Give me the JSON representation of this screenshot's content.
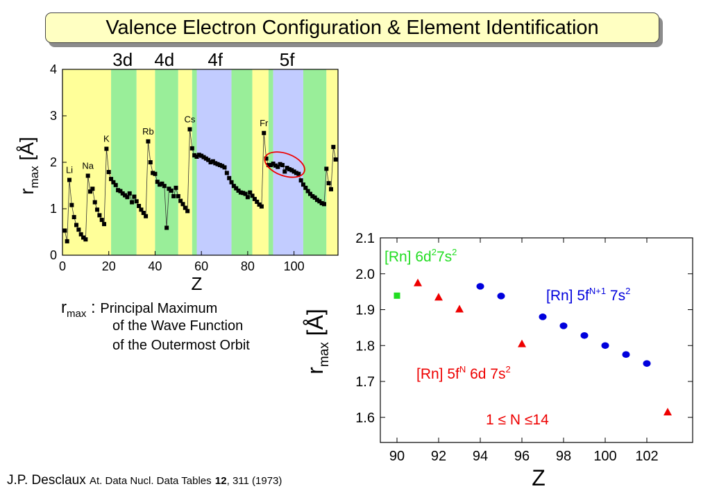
{
  "title": "Valence Electron Configuration & Element Identification",
  "left_plot": {
    "band_labels": [
      "3d",
      "4d",
      "4f",
      "5f"
    ],
    "element_labels": [
      "Li",
      "Na",
      "K",
      "Rb",
      "Cs",
      "Fr"
    ],
    "ylabel_main": "r",
    "ylabel_sub": "max",
    "ylabel_unit": "[Å]",
    "xlabel": "Z",
    "xticks": [
      "0",
      "20",
      "40",
      "60",
      "80",
      "100"
    ],
    "yticks": [
      "0",
      "1",
      "2",
      "3",
      "4"
    ]
  },
  "right_plot": {
    "xlabel": "Z",
    "ylabel_main": "r",
    "ylabel_sub": "max",
    "ylabel_unit": "[Å]",
    "xticks": [
      "90",
      "92",
      "94",
      "96",
      "98",
      "100",
      "102"
    ],
    "yticks": [
      "1.6",
      "1.7",
      "1.8",
      "1.9",
      "2.0",
      "2.1"
    ],
    "label_green": {
      "base": "[Rn] 6d",
      "sup1": "2",
      "mid": "7s",
      "sup2": "2"
    },
    "label_blue": {
      "base": "[Rn] 5f",
      "sup1": "N+1",
      "mid": " 7s",
      "sup2": "2"
    },
    "label_red": {
      "base": "[Rn] 5f",
      "sup1": "N",
      "mid": " 6d 7s",
      "sup2": "2"
    },
    "label_range": "1 ≤ N ≤14"
  },
  "rmax_note": {
    "symbol": "r",
    "sub": "max",
    "colon": " : ",
    "lines": [
      "Principal Maximum",
      "of the Wave Function",
      "of the Outermost Orbit"
    ]
  },
  "citation": {
    "author": "J.P. Desclaux",
    "journal": "At. Data Nucl. Data Tables",
    "volume": "12",
    "pages": ", 311 (1973)"
  },
  "colors": {
    "yellow_band": "#ffff99",
    "green_band": "#99ee99",
    "blue_band": "#c2ccff",
    "title_bg": "#ffffc2",
    "green_marker": "#22dd22",
    "red_marker": "#ee0000",
    "blue_marker": "#0000dd"
  },
  "chart_data": [
    {
      "type": "line",
      "xlabel": "Z",
      "ylabel": "r_max [Å]",
      "xlim": [
        0,
        119
      ],
      "ylim": [
        0,
        4
      ],
      "bands": [
        {
          "from": 0,
          "to": 21,
          "color": "yellow"
        },
        {
          "from": 21,
          "to": 32,
          "color": "green"
        },
        {
          "from": 32,
          "to": 40,
          "color": "yellow"
        },
        {
          "from": 40,
          "to": 50,
          "color": "green"
        },
        {
          "from": 50,
          "to": 56,
          "color": "yellow"
        },
        {
          "from": 56,
          "to": 58,
          "color": "green"
        },
        {
          "from": 58,
          "to": 73,
          "color": "blue"
        },
        {
          "from": 73,
          "to": 82,
          "color": "green"
        },
        {
          "from": 82,
          "to": 89,
          "color": "yellow"
        },
        {
          "from": 89,
          "to": 91,
          "color": "green"
        },
        {
          "from": 91,
          "to": 104,
          "color": "blue"
        },
        {
          "from": 104,
          "to": 114,
          "color": "green"
        },
        {
          "from": 114,
          "to": 119,
          "color": "yellow"
        }
      ],
      "band_label_z": [
        {
          "text": "3d",
          "z": 26
        },
        {
          "text": "4d",
          "z": 44
        },
        {
          "text": "4f",
          "z": 66
        },
        {
          "text": "5f",
          "z": 97
        }
      ],
      "element_labels": [
        {
          "text": "Li",
          "z": 3,
          "r": 1.62
        },
        {
          "text": "Na",
          "z": 11,
          "r": 1.71
        },
        {
          "text": "K",
          "z": 19,
          "r": 2.29
        },
        {
          "text": "Rb",
          "z": 37,
          "r": 2.45
        },
        {
          "text": "Cs",
          "z": 55,
          "r": 2.71
        },
        {
          "text": "Fr",
          "z": 87,
          "r": 2.63
        }
      ],
      "x": [
        1,
        2,
        3,
        4,
        5,
        6,
        7,
        8,
        9,
        10,
        11,
        12,
        13,
        14,
        15,
        16,
        17,
        18,
        19,
        20,
        21,
        22,
        23,
        24,
        25,
        26,
        27,
        28,
        29,
        30,
        31,
        32,
        33,
        34,
        35,
        36,
        37,
        38,
        39,
        40,
        41,
        42,
        43,
        44,
        45,
        46,
        47,
        48,
        49,
        50,
        51,
        52,
        53,
        54,
        55,
        56,
        57,
        58,
        59,
        60,
        61,
        62,
        63,
        64,
        65,
        66,
        67,
        68,
        69,
        70,
        71,
        72,
        73,
        74,
        75,
        76,
        77,
        78,
        79,
        80,
        81,
        82,
        83,
        84,
        85,
        86,
        87,
        88,
        89,
        90,
        91,
        92,
        93,
        94,
        95,
        96,
        97,
        98,
        99,
        100,
        101,
        102,
        103,
        104,
        105,
        106,
        107,
        108,
        109,
        110,
        111,
        112,
        113,
        114,
        115,
        116,
        117,
        118
      ],
      "y": [
        0.53,
        0.3,
        1.62,
        1.08,
        0.82,
        0.65,
        0.55,
        0.45,
        0.38,
        0.34,
        1.71,
        1.37,
        1.43,
        1.14,
        0.98,
        0.86,
        0.76,
        0.67,
        2.29,
        1.79,
        1.64,
        1.57,
        1.51,
        1.4,
        1.38,
        1.33,
        1.29,
        1.25,
        1.33,
        1.14,
        1.26,
        1.16,
        1.06,
        0.98,
        0.91,
        0.84,
        2.45,
        2.0,
        1.77,
        1.75,
        1.58,
        1.52,
        1.54,
        1.49,
        0.59,
        1.43,
        1.39,
        1.27,
        1.45,
        1.27,
        1.17,
        1.1,
        1.02,
        0.95,
        2.71,
        2.3,
        2.15,
        2.12,
        2.16,
        2.14,
        2.11,
        2.08,
        2.05,
        2.0,
        2.02,
        1.98,
        1.96,
        1.94,
        1.92,
        1.89,
        1.77,
        1.66,
        1.57,
        1.49,
        1.44,
        1.39,
        1.35,
        1.34,
        1.32,
        1.25,
        1.35,
        1.28,
        1.21,
        1.15,
        1.09,
        1.05,
        2.63,
        2.08,
        1.94,
        1.94,
        1.97,
        1.93,
        1.9,
        1.96,
        1.94,
        1.8,
        1.88,
        1.85,
        1.83,
        1.8,
        1.77,
        1.75,
        1.61,
        1.52,
        1.45,
        1.38,
        1.32,
        1.27,
        1.24,
        1.19,
        1.16,
        1.12,
        1.1,
        1.86,
        1.55,
        1.42,
        2.33,
        2.06
      ],
      "ellipse_highlight": {
        "center_z": 96,
        "center_r": 1.95
      }
    },
    {
      "type": "scatter",
      "xlabel": "Z",
      "ylabel": "r_max [Å]",
      "xlim": [
        89.2,
        104.2
      ],
      "ylim": [
        1.53,
        2.1
      ],
      "series": [
        {
          "name": "[Rn] 6d²7s²",
          "marker": "square",
          "color": "green",
          "x": [
            90
          ],
          "y": [
            1.939
          ]
        },
        {
          "name": "[Rn] 5fᴺ 6d 7s²",
          "marker": "triangle",
          "color": "red",
          "x": [
            91,
            92,
            93,
            96,
            103
          ],
          "y": [
            1.975,
            1.935,
            1.902,
            1.805,
            1.615
          ]
        },
        {
          "name": "[Rn] 5fᴺ⁺¹ 7s²",
          "marker": "circle",
          "color": "blue",
          "x": [
            94,
            95,
            97,
            98,
            99,
            100,
            101,
            102
          ],
          "y": [
            1.965,
            1.938,
            1.88,
            1.855,
            1.828,
            1.8,
            1.775,
            1.75
          ]
        }
      ]
    }
  ]
}
